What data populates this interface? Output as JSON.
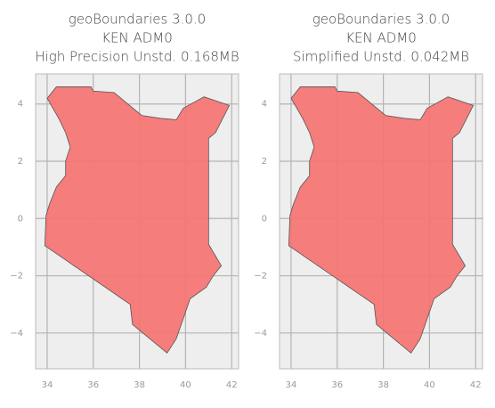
{
  "chart_data": [
    {
      "type": "map",
      "title": [
        "geoBoundaries 3.0.0",
        "KEN ADM0",
        "High Precision Unstd. 0.168MB"
      ],
      "x": [
        34.0,
        34.4,
        35.9,
        36.0,
        36.9,
        38.1,
        38.9,
        39.6,
        39.9,
        40.8,
        41.9,
        41.3,
        41.0,
        41.0,
        41.55,
        41.2,
        40.9,
        40.2,
        39.9,
        39.6,
        39.2,
        37.7,
        37.6,
        33.9,
        33.95,
        34.1,
        34.4,
        34.8,
        34.8,
        35.0,
        34.8,
        34.5,
        34.0
      ],
      "y": [
        4.2,
        4.6,
        4.6,
        4.45,
        4.4,
        3.6,
        3.5,
        3.45,
        3.85,
        4.25,
        3.95,
        3.0,
        2.8,
        -0.9,
        -1.65,
        -2.0,
        -2.4,
        -2.8,
        -3.5,
        -4.2,
        -4.7,
        -3.7,
        -3.0,
        -0.95,
        0.1,
        0.5,
        1.1,
        1.5,
        2.0,
        2.5,
        3.0,
        3.5,
        4.2
      ],
      "color": "#f47674",
      "xlim": [
        33.5,
        42.3
      ],
      "ylim": [
        -5.25,
        5.05
      ],
      "xticks": [
        34,
        36,
        38,
        40,
        42
      ],
      "yticks": [
        {
          "value": -4,
          "label": "−4"
        },
        {
          "value": -2,
          "label": "−2"
        },
        0,
        2,
        4
      ],
      "grid": true
    },
    {
      "type": "map",
      "title": [
        "geoBoundaries 3.0.0",
        "KEN ADM0",
        "Simplified Unstd. 0.042MB"
      ],
      "x": [
        34.0,
        34.4,
        35.9,
        36.0,
        36.9,
        38.1,
        38.9,
        39.6,
        39.9,
        40.8,
        41.9,
        41.3,
        41.0,
        41.0,
        41.55,
        41.2,
        40.9,
        40.2,
        39.9,
        39.6,
        39.2,
        37.7,
        37.6,
        33.9,
        33.95,
        34.1,
        34.4,
        34.8,
        34.8,
        35.0,
        34.8,
        34.5,
        34.0
      ],
      "y": [
        4.2,
        4.6,
        4.6,
        4.45,
        4.4,
        3.6,
        3.5,
        3.45,
        3.85,
        4.25,
        3.95,
        3.0,
        2.8,
        -0.9,
        -1.65,
        -2.0,
        -2.4,
        -2.8,
        -3.5,
        -4.2,
        -4.7,
        -3.7,
        -3.0,
        -0.95,
        0.1,
        0.5,
        1.1,
        1.5,
        2.0,
        2.5,
        3.0,
        3.5,
        4.2
      ],
      "color": "#f47674",
      "xlim": [
        33.5,
        42.3
      ],
      "ylim": [
        -5.25,
        5.05
      ],
      "xticks": [
        34,
        36,
        38,
        40,
        42
      ],
      "yticks": [
        {
          "value": -4,
          "label": "−4"
        },
        {
          "value": -2,
          "label": "−2"
        },
        0,
        2,
        4
      ],
      "grid": true
    }
  ]
}
